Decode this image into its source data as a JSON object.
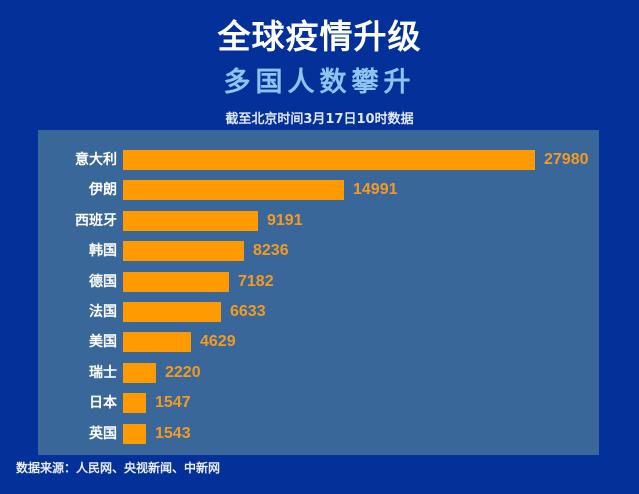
{
  "header": {
    "title": "全球疫情升级",
    "subtitle": "多国人数攀升",
    "note": "截至北京时间3月17日10时数据"
  },
  "footer": {
    "source": "数据来源：人民网、央视新闻、中新网"
  },
  "colors": {
    "background": "#04309a",
    "panel": "#3a6799",
    "bar": "#ff9a00",
    "value_text": "#f39a25",
    "subtitle": "#8fc4f2"
  },
  "chart_data": {
    "type": "bar",
    "orientation": "horizontal",
    "title": "全球疫情升级",
    "subtitle": "多国人数攀升",
    "annotation": "截至北京时间3月17日10时数据",
    "categories": [
      "意大利",
      "伊朗",
      "西班牙",
      "韩国",
      "德国",
      "法国",
      "美国",
      "瑞士",
      "日本",
      "英国"
    ],
    "values": [
      27980,
      14991,
      9191,
      8236,
      7182,
      6633,
      4629,
      2220,
      1547,
      1543
    ],
    "xlabel": "",
    "ylabel": "",
    "grid": false,
    "legend": null,
    "data_labels": true,
    "source": "数据来源：人民网、央视新闻、中新网"
  }
}
